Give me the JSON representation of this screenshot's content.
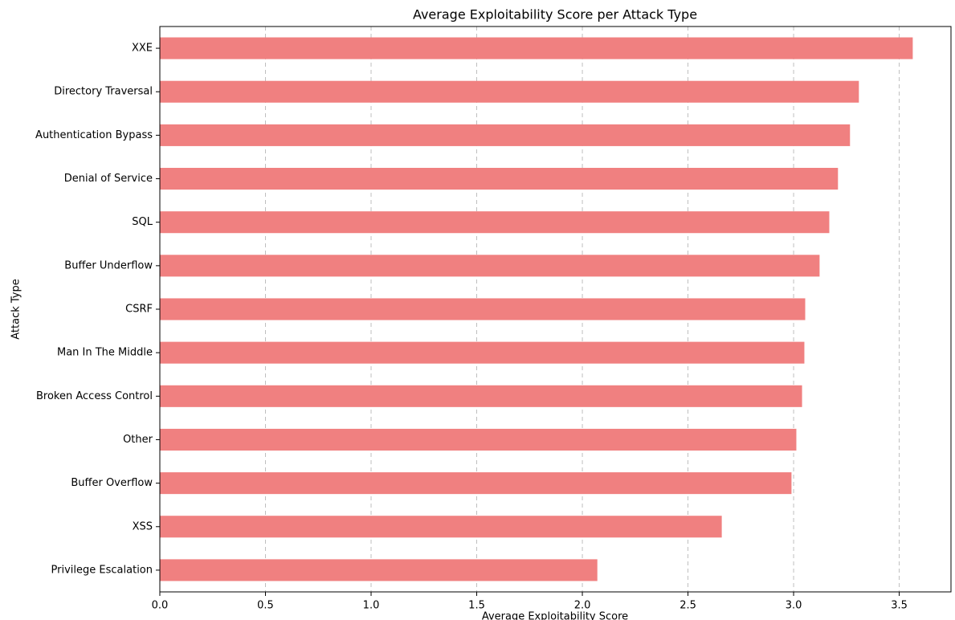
{
  "chart_data": {
    "type": "barh",
    "title": "Average Exploitability Score per Attack Type",
    "x_label": "Average Exploitability Score",
    "y_label": "Attack Type",
    "categories": [
      "XXE",
      "Directory Traversal",
      "Authentication Bypass",
      "Denial of Service",
      "SQL",
      "Buffer Underflow",
      "CSRF",
      "Man In The Middle",
      "Broken Access Control",
      "Other",
      "Buffer Overflow",
      "XSS",
      "Privilege Escalation"
    ],
    "values": [
      3.564,
      3.309,
      3.267,
      3.21,
      3.169,
      3.123,
      3.055,
      3.051,
      3.04,
      3.013,
      2.99,
      2.66,
      2.071
    ],
    "color": "#f08080",
    "xlim": [
      0,
      3.745
    ],
    "xticks": [
      {
        "value": 0,
        "label": "0.0"
      },
      0.5,
      {
        "value": 1,
        "label": "1.0"
      },
      1.5,
      {
        "value": 2,
        "label": "2.0"
      },
      2.5,
      {
        "value": 3,
        "label": "3.0"
      },
      3.5
    ],
    "grid": true
  }
}
